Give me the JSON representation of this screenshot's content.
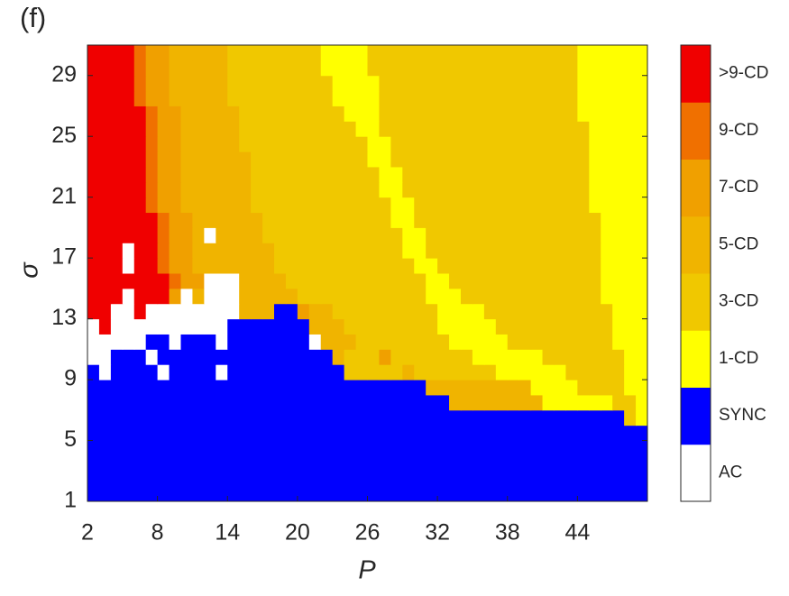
{
  "chart_data": {
    "type": "heatmap",
    "panel_label": "(f)",
    "xlabel": "P",
    "ylabel": "σ",
    "x": [
      2,
      3,
      4,
      5,
      6,
      7,
      8,
      9,
      10,
      11,
      12,
      13,
      14,
      15,
      16,
      17,
      18,
      19,
      20,
      21,
      22,
      23,
      24,
      25,
      26,
      27,
      28,
      29,
      30,
      31,
      32,
      33,
      34,
      35,
      36,
      37,
      38,
      39,
      40,
      41,
      42,
      43,
      44,
      45,
      46,
      47,
      48,
      49
    ],
    "y": [
      1,
      2,
      3,
      4,
      5,
      6,
      7,
      8,
      9,
      10,
      11,
      12,
      13,
      14,
      15,
      16,
      17,
      18,
      19,
      20,
      21,
      22,
      23,
      24,
      25,
      26,
      27,
      28,
      29,
      30
    ],
    "xlim": [
      2,
      50
    ],
    "ylim": [
      1,
      31
    ],
    "xticks": [
      2,
      8,
      14,
      20,
      26,
      32,
      38,
      44
    ],
    "yticks": [
      1,
      5,
      9,
      13,
      17,
      21,
      25,
      29
    ],
    "colorbar": {
      "labels": [
        "AC",
        "SYNC",
        "1-CD",
        "3-CD",
        "5-CD",
        "7-CD",
        "9-CD",
        ">9-CD"
      ],
      "colors": [
        "#ffffff",
        "#0000ff",
        "#ffff00",
        "#f0c800",
        "#f0b400",
        "#f0a000",
        "#f07000",
        "#f00000"
      ]
    },
    "values": [
      [
        1,
        1,
        1,
        1,
        1,
        1,
        1,
        1,
        1,
        1,
        1,
        1,
        1,
        1,
        1,
        1,
        1,
        1,
        1,
        1,
        1,
        1,
        1,
        1,
        1,
        1,
        1,
        1,
        1,
        1,
        1,
        1,
        1,
        1,
        1,
        1,
        1,
        1,
        1,
        1,
        1,
        1,
        1,
        1,
        1,
        1,
        1,
        1
      ],
      [
        1,
        1,
        1,
        1,
        1,
        1,
        1,
        1,
        1,
        1,
        1,
        1,
        1,
        1,
        1,
        1,
        1,
        1,
        1,
        1,
        1,
        1,
        1,
        1,
        1,
        1,
        1,
        1,
        1,
        1,
        1,
        1,
        1,
        1,
        1,
        1,
        1,
        1,
        1,
        1,
        1,
        1,
        1,
        1,
        1,
        1,
        1,
        1
      ],
      [
        1,
        1,
        1,
        1,
        1,
        1,
        1,
        1,
        1,
        1,
        1,
        1,
        1,
        1,
        1,
        1,
        1,
        1,
        1,
        1,
        1,
        1,
        1,
        1,
        1,
        1,
        1,
        1,
        1,
        1,
        1,
        1,
        1,
        1,
        1,
        1,
        1,
        1,
        1,
        1,
        1,
        1,
        1,
        1,
        1,
        1,
        1,
        1
      ],
      [
        1,
        1,
        1,
        1,
        1,
        1,
        1,
        1,
        1,
        1,
        1,
        1,
        1,
        1,
        1,
        1,
        1,
        1,
        1,
        1,
        1,
        1,
        1,
        1,
        1,
        1,
        1,
        1,
        1,
        1,
        1,
        1,
        1,
        1,
        1,
        1,
        1,
        1,
        1,
        1,
        1,
        1,
        1,
        1,
        1,
        1,
        1,
        1
      ],
      [
        1,
        1,
        1,
        1,
        1,
        1,
        1,
        1,
        1,
        1,
        1,
        1,
        1,
        1,
        1,
        1,
        1,
        1,
        1,
        1,
        1,
        1,
        1,
        1,
        1,
        1,
        1,
        1,
        1,
        1,
        1,
        1,
        1,
        1,
        1,
        1,
        1,
        1,
        1,
        1,
        1,
        1,
        1,
        1,
        1,
        1,
        1,
        1
      ],
      [
        1,
        1,
        1,
        1,
        1,
        1,
        1,
        1,
        1,
        1,
        1,
        1,
        1,
        1,
        1,
        1,
        1,
        1,
        1,
        1,
        1,
        1,
        1,
        1,
        1,
        1,
        1,
        1,
        1,
        1,
        1,
        1,
        1,
        1,
        1,
        1,
        1,
        1,
        1,
        1,
        1,
        1,
        1,
        1,
        1,
        1,
        3,
        2
      ],
      [
        1,
        1,
        1,
        1,
        1,
        1,
        1,
        1,
        1,
        1,
        1,
        1,
        1,
        1,
        1,
        1,
        1,
        1,
        1,
        1,
        1,
        1,
        1,
        1,
        1,
        1,
        1,
        1,
        1,
        1,
        1,
        4,
        4,
        4,
        4,
        4,
        4,
        4,
        4,
        2,
        2,
        2,
        2,
        2,
        2,
        3,
        3,
        2
      ],
      [
        1,
        1,
        1,
        1,
        1,
        1,
        1,
        1,
        1,
        1,
        1,
        1,
        1,
        1,
        1,
        1,
        1,
        1,
        1,
        1,
        1,
        1,
        1,
        1,
        1,
        1,
        1,
        1,
        1,
        4,
        4,
        4,
        4,
        4,
        4,
        4,
        4,
        4,
        2,
        2,
        2,
        2,
        3,
        3,
        3,
        3,
        2,
        2
      ],
      [
        1,
        0,
        1,
        1,
        1,
        1,
        0,
        1,
        1,
        1,
        1,
        0,
        1,
        1,
        1,
        1,
        1,
        1,
        1,
        1,
        1,
        1,
        3,
        3,
        3,
        3,
        3,
        4,
        3,
        3,
        3,
        3,
        3,
        3,
        3,
        2,
        2,
        2,
        2,
        2,
        2,
        3,
        3,
        3,
        3,
        3,
        2,
        2
      ],
      [
        0,
        0,
        1,
        1,
        1,
        0,
        1,
        1,
        1,
        1,
        1,
        1,
        1,
        1,
        1,
        1,
        1,
        1,
        1,
        1,
        1,
        4,
        3,
        3,
        3,
        5,
        3,
        3,
        3,
        3,
        3,
        3,
        3,
        2,
        2,
        2,
        2,
        2,
        2,
        3,
        3,
        3,
        3,
        3,
        3,
        3,
        2,
        2
      ],
      [
        0,
        0,
        0,
        0,
        0,
        1,
        1,
        0,
        1,
        1,
        1,
        0,
        1,
        1,
        1,
        1,
        1,
        1,
        1,
        0,
        4,
        4,
        4,
        3,
        3,
        3,
        3,
        3,
        3,
        3,
        3,
        2,
        2,
        2,
        2,
        2,
        3,
        3,
        3,
        3,
        3,
        3,
        3,
        3,
        3,
        2,
        2,
        2
      ],
      [
        0,
        7,
        0,
        0,
        0,
        0,
        0,
        0,
        0,
        0,
        0,
        0,
        1,
        1,
        1,
        1,
        1,
        1,
        1,
        4,
        4,
        4,
        3,
        3,
        3,
        3,
        3,
        3,
        3,
        3,
        2,
        2,
        2,
        2,
        2,
        3,
        3,
        3,
        3,
        3,
        3,
        3,
        3,
        3,
        3,
        2,
        2,
        2
      ],
      [
        7,
        7,
        0,
        0,
        7,
        0,
        0,
        0,
        0,
        0,
        0,
        0,
        0,
        4,
        4,
        4,
        1,
        1,
        5,
        4,
        4,
        3,
        3,
        3,
        3,
        3,
        3,
        3,
        3,
        3,
        2,
        2,
        2,
        2,
        3,
        3,
        3,
        3,
        3,
        3,
        3,
        3,
        3,
        3,
        3,
        2,
        2,
        2
      ],
      [
        7,
        7,
        7,
        0,
        7,
        7,
        7,
        5,
        0,
        4,
        0,
        0,
        0,
        4,
        4,
        4,
        4,
        4,
        3,
        3,
        3,
        3,
        3,
        3,
        3,
        3,
        3,
        3,
        3,
        2,
        2,
        2,
        3,
        3,
        3,
        3,
        3,
        3,
        3,
        3,
        3,
        3,
        3,
        3,
        2,
        2,
        2,
        2
      ],
      [
        7,
        7,
        7,
        7,
        7,
        7,
        7,
        6,
        5,
        5,
        0,
        0,
        0,
        4,
        4,
        4,
        4,
        3,
        3,
        3,
        3,
        3,
        3,
        3,
        3,
        3,
        3,
        3,
        3,
        2,
        2,
        3,
        3,
        3,
        3,
        3,
        3,
        3,
        3,
        3,
        3,
        3,
        3,
        3,
        2,
        2,
        2,
        2
      ],
      [
        7,
        7,
        7,
        0,
        7,
        7,
        6,
        5,
        5,
        4,
        4,
        4,
        4,
        4,
        4,
        4,
        3,
        3,
        3,
        3,
        3,
        3,
        3,
        3,
        3,
        3,
        3,
        3,
        2,
        2,
        3,
        3,
        3,
        3,
        3,
        3,
        3,
        3,
        3,
        3,
        3,
        3,
        3,
        3,
        2,
        2,
        2,
        2
      ],
      [
        7,
        7,
        7,
        0,
        7,
        7,
        6,
        5,
        5,
        4,
        4,
        4,
        4,
        4,
        4,
        4,
        3,
        3,
        3,
        3,
        3,
        3,
        3,
        3,
        3,
        3,
        3,
        2,
        2,
        3,
        3,
        3,
        3,
        3,
        3,
        3,
        3,
        3,
        3,
        3,
        3,
        3,
        3,
        3,
        2,
        2,
        2,
        2
      ],
      [
        7,
        7,
        7,
        7,
        7,
        7,
        6,
        5,
        5,
        4,
        0,
        4,
        4,
        4,
        4,
        3,
        3,
        3,
        3,
        3,
        3,
        3,
        3,
        3,
        3,
        3,
        3,
        2,
        2,
        3,
        3,
        3,
        3,
        3,
        3,
        3,
        3,
        3,
        3,
        3,
        3,
        3,
        3,
        3,
        2,
        2,
        2,
        2
      ],
      [
        7,
        7,
        7,
        7,
        7,
        7,
        6,
        5,
        5,
        4,
        4,
        4,
        4,
        4,
        4,
        3,
        3,
        3,
        3,
        3,
        3,
        3,
        3,
        3,
        3,
        3,
        2,
        2,
        3,
        3,
        3,
        3,
        3,
        3,
        3,
        3,
        3,
        3,
        3,
        3,
        3,
        3,
        3,
        3,
        2,
        2,
        2,
        2
      ],
      [
        7,
        7,
        7,
        7,
        7,
        6,
        5,
        5,
        4,
        4,
        4,
        4,
        4,
        4,
        3,
        3,
        3,
        3,
        3,
        3,
        3,
        3,
        3,
        3,
        3,
        3,
        2,
        2,
        3,
        3,
        3,
        3,
        3,
        3,
        3,
        3,
        3,
        3,
        3,
        3,
        3,
        3,
        3,
        2,
        2,
        2,
        2,
        2
      ],
      [
        7,
        7,
        7,
        7,
        7,
        6,
        5,
        5,
        4,
        4,
        4,
        4,
        4,
        4,
        3,
        3,
        3,
        3,
        3,
        3,
        3,
        3,
        3,
        3,
        3,
        2,
        2,
        3,
        3,
        3,
        3,
        3,
        3,
        3,
        3,
        3,
        3,
        3,
        3,
        3,
        3,
        3,
        3,
        2,
        2,
        2,
        2,
        2
      ],
      [
        7,
        7,
        7,
        7,
        7,
        6,
        5,
        5,
        4,
        4,
        4,
        4,
        4,
        4,
        3,
        3,
        3,
        3,
        3,
        3,
        3,
        3,
        3,
        3,
        3,
        2,
        2,
        3,
        3,
        3,
        3,
        3,
        3,
        3,
        3,
        3,
        3,
        3,
        3,
        3,
        3,
        3,
        3,
        2,
        2,
        2,
        2,
        2
      ],
      [
        7,
        7,
        7,
        7,
        7,
        6,
        5,
        5,
        4,
        4,
        4,
        4,
        4,
        4,
        3,
        3,
        3,
        3,
        3,
        3,
        3,
        3,
        3,
        3,
        2,
        2,
        3,
        3,
        3,
        3,
        3,
        3,
        3,
        3,
        3,
        3,
        3,
        3,
        3,
        3,
        3,
        3,
        3,
        2,
        2,
        2,
        2,
        2
      ],
      [
        7,
        7,
        7,
        7,
        7,
        6,
        5,
        5,
        4,
        4,
        4,
        4,
        4,
        3,
        3,
        3,
        3,
        3,
        3,
        3,
        3,
        3,
        3,
        3,
        2,
        2,
        3,
        3,
        3,
        3,
        3,
        3,
        3,
        3,
        3,
        3,
        3,
        3,
        3,
        3,
        3,
        3,
        3,
        2,
        2,
        2,
        2,
        2
      ],
      [
        7,
        7,
        7,
        7,
        7,
        6,
        5,
        5,
        4,
        4,
        4,
        4,
        4,
        3,
        3,
        3,
        3,
        3,
        3,
        3,
        3,
        3,
        3,
        2,
        2,
        3,
        3,
        3,
        3,
        3,
        3,
        3,
        3,
        3,
        3,
        3,
        3,
        3,
        3,
        3,
        3,
        3,
        3,
        2,
        2,
        2,
        2,
        2
      ],
      [
        7,
        7,
        7,
        7,
        7,
        6,
        5,
        5,
        4,
        4,
        4,
        4,
        4,
        3,
        3,
        3,
        3,
        3,
        3,
        3,
        3,
        3,
        2,
        2,
        2,
        3,
        3,
        3,
        3,
        3,
        3,
        3,
        3,
        3,
        3,
        3,
        3,
        3,
        3,
        3,
        3,
        3,
        2,
        2,
        2,
        2,
        2,
        2
      ],
      [
        7,
        7,
        7,
        7,
        6,
        5,
        5,
        4,
        4,
        4,
        4,
        4,
        3,
        3,
        3,
        3,
        3,
        3,
        3,
        3,
        3,
        2,
        2,
        2,
        2,
        3,
        3,
        3,
        3,
        3,
        3,
        3,
        3,
        3,
        3,
        3,
        3,
        3,
        3,
        3,
        3,
        3,
        2,
        2,
        2,
        2,
        2,
        2
      ],
      [
        7,
        7,
        7,
        7,
        6,
        5,
        5,
        4,
        4,
        4,
        4,
        4,
        3,
        3,
        3,
        3,
        3,
        3,
        3,
        3,
        3,
        2,
        2,
        2,
        2,
        3,
        3,
        3,
        3,
        3,
        3,
        3,
        3,
        3,
        3,
        3,
        3,
        3,
        3,
        3,
        3,
        3,
        2,
        2,
        2,
        2,
        2,
        2
      ],
      [
        7,
        7,
        7,
        7,
        6,
        5,
        5,
        4,
        4,
        4,
        4,
        4,
        3,
        3,
        3,
        3,
        3,
        3,
        3,
        3,
        2,
        2,
        2,
        2,
        3,
        3,
        3,
        3,
        3,
        3,
        3,
        3,
        3,
        3,
        3,
        3,
        3,
        3,
        3,
        3,
        3,
        3,
        2,
        2,
        2,
        2,
        2,
        2
      ],
      [
        7,
        7,
        7,
        7,
        6,
        5,
        5,
        4,
        4,
        4,
        4,
        4,
        3,
        3,
        3,
        3,
        3,
        3,
        3,
        3,
        2,
        2,
        2,
        2,
        3,
        3,
        3,
        3,
        3,
        3,
        3,
        3,
        3,
        3,
        3,
        3,
        3,
        3,
        3,
        3,
        3,
        3,
        2,
        2,
        2,
        2,
        2,
        2
      ]
    ]
  }
}
